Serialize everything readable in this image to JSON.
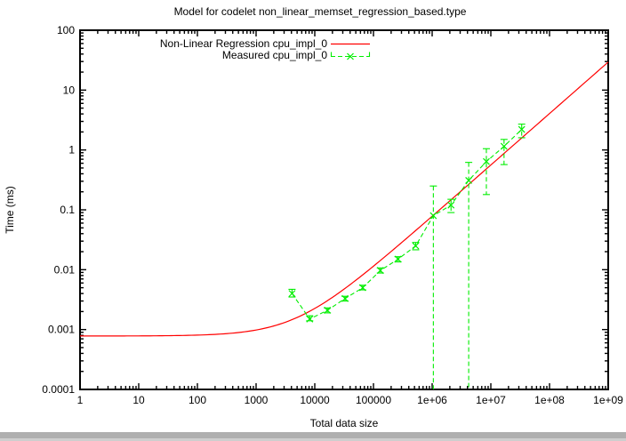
{
  "window": {
    "bottom_bar_color": "#afafaf",
    "bottom_bar_edge_color": "#cecece",
    "background_color": "#ffffff"
  },
  "chart_data": {
    "type": "line",
    "title": "Model for codelet non_linear_memset_regression_based.type",
    "xlabel": "Total data size",
    "ylabel": "Time (ms)",
    "x_scale": "log",
    "y_scale": "log",
    "xlim": [
      1,
      1000000000.0
    ],
    "ylim": [
      0.0001,
      100
    ],
    "grid": false,
    "legend_position": "top-center-inside",
    "x_tick_labels": [
      "1",
      "10",
      "100",
      "1000",
      "10000",
      "100000",
      "1e+06",
      "1e+07",
      "1e+08",
      "1e+09"
    ],
    "y_tick_labels": [
      "100",
      "10",
      "1",
      "0.1",
      "0.01",
      "0.001",
      "0.0001"
    ],
    "axis_color": "#000000",
    "legend": [
      {
        "label": "Non-Linear Regression cpu_impl_0",
        "color": "#ff0000",
        "style": "solid-line"
      },
      {
        "label": "Measured cpu_impl_0",
        "color": "#00ee00",
        "style": "dashed-line-x-marker-yerrorbars"
      }
    ],
    "series": [
      {
        "name": "Non-Linear Regression cpu_impl_0",
        "kind": "model-curve",
        "color": "#ff0000",
        "model": "time_ms = t0 + c * x^p",
        "t0": 0.00078,
        "c": 5.35e-07,
        "p": 0.86
      },
      {
        "name": "Measured cpu_impl_0",
        "kind": "yerrorlines",
        "color": "#00ee00",
        "marker": "x",
        "linestyle": "dashed",
        "points": [
          {
            "x": 4096,
            "y": 0.004,
            "ylo": 0.0035,
            "yhi": 0.0047
          },
          {
            "x": 8192,
            "y": 0.0015,
            "ylo": 0.0014,
            "yhi": 0.0017
          },
          {
            "x": 16384,
            "y": 0.0021,
            "ylo": 0.0019,
            "yhi": 0.0023
          },
          {
            "x": 32768,
            "y": 0.0033,
            "ylo": 0.003,
            "yhi": 0.0036
          },
          {
            "x": 65536,
            "y": 0.005,
            "ylo": 0.0046,
            "yhi": 0.0055
          },
          {
            "x": 131072,
            "y": 0.0097,
            "ylo": 0.0088,
            "yhi": 0.0107
          },
          {
            "x": 262144,
            "y": 0.015,
            "ylo": 0.0135,
            "yhi": 0.0165
          },
          {
            "x": 524288,
            "y": 0.025,
            "ylo": 0.0215,
            "yhi": 0.0285
          },
          {
            "x": 1048576,
            "y": 0.08,
            "ylo": 0.0001,
            "yhi": 0.25
          },
          {
            "x": 2097152,
            "y": 0.12,
            "ylo": 0.09,
            "yhi": 0.15
          },
          {
            "x": 4194304,
            "y": 0.31,
            "ylo": 0.0001,
            "yhi": 0.62
          },
          {
            "x": 8388608,
            "y": 0.64,
            "ylo": 0.18,
            "yhi": 1.05
          },
          {
            "x": 16777216,
            "y": 1.15,
            "ylo": 0.57,
            "yhi": 1.5
          },
          {
            "x": 33554432,
            "y": 2.2,
            "ylo": 1.6,
            "yhi": 2.7
          }
        ]
      }
    ]
  }
}
